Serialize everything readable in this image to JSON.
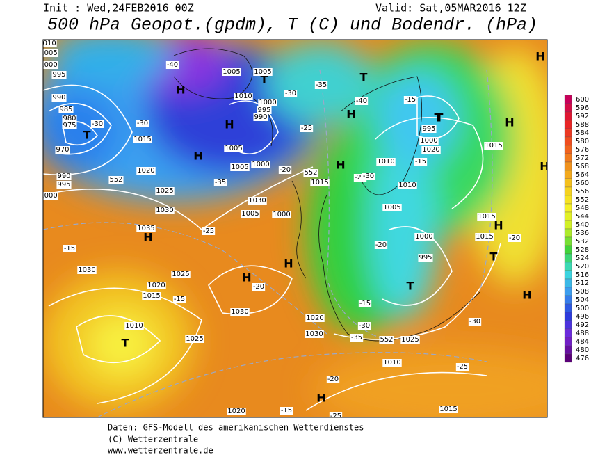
{
  "header": {
    "init": "Init : Wed,24FEB2016 00Z",
    "valid": "Valid: Sat,05MAR2016 12Z",
    "title": "500 hPa Geopot.(gpdm), T (C) und Bodendr. (hPa)"
  },
  "legend": {
    "labels": [
      600,
      596,
      592,
      588,
      584,
      580,
      576,
      572,
      568,
      564,
      560,
      556,
      552,
      548,
      544,
      540,
      536,
      532,
      528,
      524,
      520,
      516,
      512,
      508,
      504,
      500,
      496,
      492,
      488,
      484,
      480,
      476
    ]
  },
  "map": {
    "labels": [
      "H",
      "H",
      "H",
      "T",
      "H",
      "T",
      "H",
      "H",
      "H",
      "H",
      "H",
      "T",
      "T",
      "T",
      "H",
      "T",
      "H",
      "T",
      "H",
      "H",
      "H",
      "T",
      1010,
      1005,
      1000,
      995,
      990,
      985,
      980,
      975,
      970,
      990,
      995,
      1000,
      1020,
      1015,
      1005,
      1005,
      1010,
      1000,
      995,
      990,
      1015,
      995,
      1000,
      1020,
      1025,
      1030,
      1035,
      1030,
      1025,
      1020,
      1015,
      1010,
      1030,
      1025,
      1020,
      1030,
      1025,
      1030,
      1005,
      1000,
      1005,
      1010,
      1010,
      1005,
      1000,
      995,
      1000,
      1005,
      1015,
      1015,
      1015,
      1010,
      1015,
      1020,
      -40,
      -35,
      -30,
      -30,
      -25,
      -20,
      -15,
      -15,
      -15,
      -20,
      -25,
      -30,
      -35,
      -40,
      -25,
      -20,
      -15,
      -30,
      -35,
      -30,
      -25,
      -20,
      -15,
      -15,
      -20,
      -25,
      -30,
      552,
      552,
      552
    ]
  },
  "footer": {
    "lines": [
      "Daten: GFS-Modell des amerikanischen Wetterdienstes",
      "(C) Wetterzentrale",
      "www.wetterzentrale.de"
    ]
  }
}
